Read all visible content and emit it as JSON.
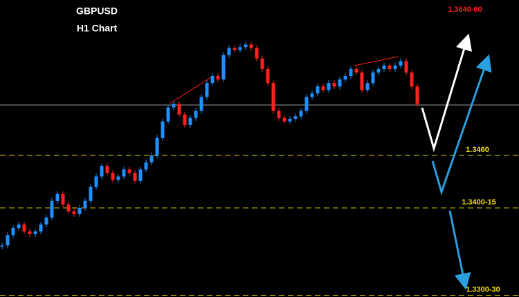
{
  "chart_data": {
    "type": "candlestick",
    "title": "GBPUSD",
    "subtitle": "H1 Chart",
    "target_label": "1.3640-60",
    "ylim": [
      1.3298,
      1.3638
    ],
    "up_color": "#1e90ff",
    "down_color": "#ff2020",
    "level_color": "#d4c400",
    "closes": [
      1.3357,
      1.3369,
      1.3377,
      1.3381,
      1.3373,
      1.337,
      1.3373,
      1.3381,
      1.3389,
      1.3408,
      1.3416,
      1.3404,
      1.3396,
      1.3393,
      1.34,
      1.3408,
      1.3424,
      1.3436,
      1.3448,
      1.344,
      1.3432,
      1.3436,
      1.3444,
      1.344,
      1.3431,
      1.3444,
      1.3452,
      1.346,
      1.348,
      1.3499,
      1.3515,
      1.3519,
      1.3507,
      1.3495,
      1.3503,
      1.3511,
      1.3527,
      1.3543,
      1.3551,
      1.3547,
      1.3575,
      1.3583,
      1.3581,
      1.3584,
      1.3587,
      1.3583,
      1.3571,
      1.3559,
      1.3543,
      1.3511,
      1.3503,
      1.3499,
      1.3502,
      1.3505,
      1.3511,
      1.3527,
      1.3531,
      1.3539,
      1.3535,
      1.3543,
      1.3539,
      1.3547,
      1.3551,
      1.3559,
      1.3555,
      1.3535,
      1.3543,
      1.3555,
      1.3559,
      1.3563,
      1.3559,
      1.3563,
      1.3568,
      1.3555,
      1.3539,
      1.3519
    ],
    "levels": [
      {
        "value": 1.346,
        "label": "1.3460"
      },
      {
        "value": 1.34,
        "label": "1.3400-15"
      },
      {
        "value": 1.33,
        "label": "1.3300-30"
      }
    ]
  }
}
